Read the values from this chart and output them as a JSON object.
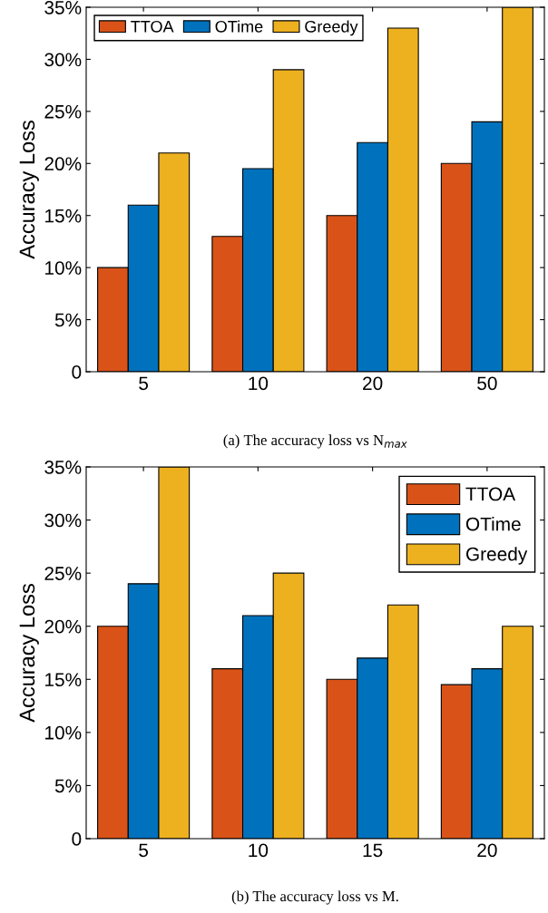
{
  "chart_data": [
    {
      "type": "bar",
      "ylabel": "Accuracy Loss",
      "categories": [
        "5",
        "10",
        "20",
        "50"
      ],
      "series": [
        {
          "name": "TTOA",
          "color": "#d95319",
          "values": [
            10,
            13,
            15,
            20
          ]
        },
        {
          "name": "OTime",
          "color": "#0072bd",
          "values": [
            16,
            19.5,
            22,
            24
          ]
        },
        {
          "name": "Greedy",
          "color": "#edb120",
          "values": [
            21,
            29,
            33,
            35
          ]
        }
      ],
      "ylim": [
        0,
        35
      ],
      "yticks": [
        0,
        {
          "value": 5,
          "label": "5%"
        },
        {
          "value": 10,
          "label": "10%"
        },
        {
          "value": 15,
          "label": "15%"
        },
        {
          "value": 20,
          "label": "20%"
        },
        {
          "value": 25,
          "label": "25%"
        },
        {
          "value": 30,
          "label": "30%"
        },
        {
          "value": 35,
          "label": "35%"
        }
      ],
      "legend": "top left",
      "grid": false,
      "annotations": [
        "(a) The accuracy loss vs N$_{max}$"
      ]
    },
    {
      "type": "bar",
      "ylabel": "Accuracy Loss",
      "categories": [
        "5",
        "10",
        "15",
        "20"
      ],
      "series": [
        {
          "name": "TTOA",
          "color": "#d95319",
          "values": [
            20,
            16,
            15,
            14.5
          ]
        },
        {
          "name": "OTime",
          "color": "#0072bd",
          "values": [
            24,
            21,
            17,
            16
          ]
        },
        {
          "name": "Greedy",
          "color": "#edb120",
          "values": [
            35,
            25,
            22,
            20
          ]
        }
      ],
      "ylim": [
        0,
        35
      ],
      "yticks": [
        0,
        {
          "value": 5,
          "label": "5%"
        },
        {
          "value": 10,
          "label": "10%"
        },
        {
          "value": 15,
          "label": "15%"
        },
        {
          "value": 20,
          "label": "20%"
        },
        {
          "value": 25,
          "label": "25%"
        },
        {
          "value": 30,
          "label": "30%"
        },
        {
          "value": 35,
          "label": "35%"
        }
      ],
      "legend": "top right",
      "grid": false,
      "annotations": [
        "(b) The accuracy loss vs M."
      ]
    }
  ]
}
